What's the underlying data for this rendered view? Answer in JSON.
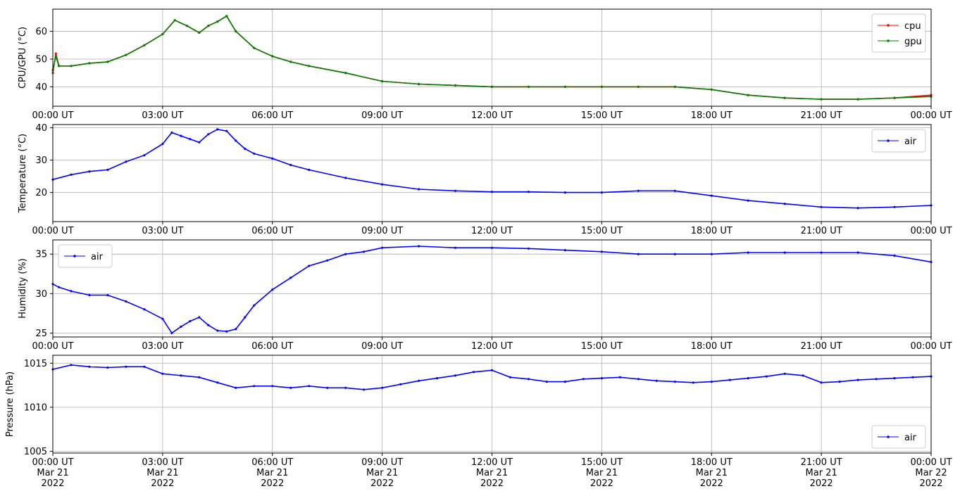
{
  "chart_data": [
    {
      "type": "line",
      "ylabel": "CPU/GPU (°C)",
      "ylim": [
        33,
        68
      ],
      "yticks": [
        40,
        50,
        60
      ],
      "xlim": [
        "2022-03-21 00:00",
        "2022-03-22 00:00"
      ],
      "xtick_labels": [
        "00:00 UT",
        "03:00 UT",
        "06:00 UT",
        "09:00 UT",
        "12:00 UT",
        "15:00 UT",
        "18:00 UT",
        "21:00 UT",
        "00:00 UT"
      ],
      "grid": true,
      "legend_placement": "top-right",
      "series": [
        {
          "name": "cpu",
          "color": "#ff0000",
          "x": [
            "00:00",
            "00:05",
            "00:10",
            "00:30",
            "01:00",
            "01:30",
            "02:00",
            "02:30",
            "03:00",
            "03:20",
            "03:40",
            "04:00",
            "04:15",
            "04:30",
            "04:45",
            "05:00",
            "05:30",
            "06:00",
            "06:30",
            "07:00",
            "08:00",
            "09:00",
            "10:00",
            "11:00",
            "12:00",
            "13:00",
            "14:00",
            "15:00",
            "16:00",
            "17:00",
            "18:00",
            "19:00",
            "20:00",
            "21:00",
            "22:00",
            "23:00",
            "24:00"
          ],
          "values": [
            45,
            52,
            47.5,
            47.5,
            48.5,
            49,
            51.5,
            55,
            59,
            64,
            62,
            59.5,
            62,
            63.5,
            65.5,
            60,
            54,
            51,
            49,
            47.5,
            45,
            42,
            41,
            40.5,
            40,
            40,
            40,
            40,
            40,
            40,
            39,
            37,
            36,
            35.5,
            35.5,
            36,
            37
          ]
        },
        {
          "name": "gpu",
          "color": "#008000",
          "x": [
            "00:00",
            "00:05",
            "00:10",
            "00:30",
            "01:00",
            "01:30",
            "02:00",
            "02:30",
            "03:00",
            "03:20",
            "03:40",
            "04:00",
            "04:15",
            "04:30",
            "04:45",
            "05:00",
            "05:30",
            "06:00",
            "06:30",
            "07:00",
            "08:00",
            "09:00",
            "10:00",
            "11:00",
            "12:00",
            "13:00",
            "14:00",
            "15:00",
            "16:00",
            "17:00",
            "18:00",
            "19:00",
            "20:00",
            "21:00",
            "22:00",
            "23:00",
            "24:00"
          ],
          "values": [
            46,
            51,
            47.5,
            47.5,
            48.5,
            49,
            51.5,
            55,
            59,
            64,
            62,
            59.5,
            62,
            63.5,
            65.5,
            60,
            54,
            51,
            49,
            47.5,
            45,
            42,
            41,
            40.5,
            40,
            40,
            40,
            40,
            40,
            40,
            39,
            37,
            36,
            35.5,
            35.5,
            36,
            36.5
          ]
        }
      ]
    },
    {
      "type": "line",
      "ylabel": "Temperature (°C)",
      "ylim": [
        11,
        41
      ],
      "yticks": [
        20,
        30,
        40
      ],
      "xlim": [
        "2022-03-21 00:00",
        "2022-03-22 00:00"
      ],
      "xtick_labels": [
        "00:00 UT",
        "03:00 UT",
        "06:00 UT",
        "09:00 UT",
        "12:00 UT",
        "15:00 UT",
        "18:00 UT",
        "21:00 UT",
        "00:00 UT"
      ],
      "grid": true,
      "legend_placement": "top-right",
      "series": [
        {
          "name": "air",
          "color": "#0000ff",
          "x": [
            "00:00",
            "00:30",
            "01:00",
            "01:30",
            "02:00",
            "02:30",
            "03:00",
            "03:15",
            "03:30",
            "03:45",
            "04:00",
            "04:15",
            "04:30",
            "04:45",
            "05:00",
            "05:15",
            "05:30",
            "06:00",
            "06:30",
            "07:00",
            "08:00",
            "09:00",
            "10:00",
            "11:00",
            "12:00",
            "13:00",
            "14:00",
            "15:00",
            "16:00",
            "17:00",
            "18:00",
            "19:00",
            "20:00",
            "21:00",
            "22:00",
            "23:00",
            "24:00"
          ],
          "values": [
            24,
            25.5,
            26.5,
            27,
            29.5,
            31.5,
            35,
            38.5,
            37.5,
            36.5,
            35.5,
            38,
            39.5,
            39,
            36,
            33.5,
            32,
            30.5,
            28.5,
            27,
            24.5,
            22.5,
            21,
            20.5,
            20.2,
            20.2,
            20,
            20,
            20.5,
            20.5,
            19,
            17.5,
            16.5,
            15.5,
            15.2,
            15.5,
            16
          ]
        }
      ]
    },
    {
      "type": "line",
      "ylabel": "Humidity (%)",
      "ylim": [
        24.5,
        36.8
      ],
      "yticks": [
        25,
        30,
        35
      ],
      "xlim": [
        "2022-03-21 00:00",
        "2022-03-22 00:00"
      ],
      "xtick_labels": [
        "00:00 UT",
        "03:00 UT",
        "06:00 UT",
        "09:00 UT",
        "12:00 UT",
        "15:00 UT",
        "18:00 UT",
        "21:00 UT",
        "00:00 UT"
      ],
      "grid": true,
      "legend_placement": "top-left",
      "series": [
        {
          "name": "air",
          "color": "#0000ff",
          "x": [
            "00:00",
            "00:10",
            "00:30",
            "01:00",
            "01:30",
            "02:00",
            "02:30",
            "03:00",
            "03:15",
            "03:30",
            "03:45",
            "04:00",
            "04:15",
            "04:30",
            "04:45",
            "05:00",
            "05:15",
            "05:30",
            "06:00",
            "06:30",
            "07:00",
            "07:30",
            "08:00",
            "08:30",
            "09:00",
            "10:00",
            "11:00",
            "12:00",
            "13:00",
            "14:00",
            "15:00",
            "16:00",
            "17:00",
            "18:00",
            "19:00",
            "20:00",
            "21:00",
            "22:00",
            "23:00",
            "24:00"
          ],
          "values": [
            31.2,
            30.8,
            30.3,
            29.8,
            29.8,
            29,
            28,
            26.8,
            25,
            25.8,
            26.5,
            27,
            26,
            25.3,
            25.2,
            25.5,
            27,
            28.5,
            30.5,
            32,
            33.5,
            34.2,
            35,
            35.3,
            35.8,
            36,
            35.8,
            35.8,
            35.7,
            35.5,
            35.3,
            35,
            35,
            35,
            35.2,
            35.2,
            35.2,
            35.2,
            34.8,
            34
          ]
        }
      ]
    },
    {
      "type": "line",
      "ylabel": "Pressure (hPa)",
      "ylim": [
        1004.8,
        1015.9
      ],
      "yticks": [
        1005,
        1010,
        1015
      ],
      "xlim": [
        "2022-03-21 00:00",
        "2022-03-22 00:00"
      ],
      "xtick_labels": [
        "00:00 UT\nMar 21\n2022",
        "03:00 UT\nMar 21\n2022",
        "06:00 UT\nMar 21\n2022",
        "09:00 UT\nMar 21\n2022",
        "12:00 UT\nMar 21\n2022",
        "15:00 UT\nMar 21\n2022",
        "18:00 UT\nMar 21\n2022",
        "21:00 UT\nMar 21\n2022",
        "00:00 UT\nMar 22\n2022"
      ],
      "grid": true,
      "legend_placement": "bottom-right",
      "series": [
        {
          "name": "air",
          "color": "#0000ff",
          "x": [
            "00:00",
            "00:30",
            "01:00",
            "01:30",
            "02:00",
            "02:30",
            "03:00",
            "03:30",
            "04:00",
            "04:30",
            "05:00",
            "05:30",
            "06:00",
            "06:30",
            "07:00",
            "07:30",
            "08:00",
            "08:30",
            "09:00",
            "09:30",
            "10:00",
            "10:30",
            "11:00",
            "11:30",
            "12:00",
            "12:30",
            "13:00",
            "13:30",
            "14:00",
            "14:30",
            "15:00",
            "15:30",
            "16:00",
            "16:30",
            "17:00",
            "17:30",
            "18:00",
            "18:30",
            "19:00",
            "19:30",
            "20:00",
            "20:30",
            "21:00",
            "21:30",
            "22:00",
            "22:30",
            "23:00",
            "23:30",
            "24:00"
          ],
          "values": [
            1014.3,
            1014.8,
            1014.6,
            1014.5,
            1014.6,
            1014.6,
            1013.8,
            1013.6,
            1013.4,
            1012.8,
            1012.2,
            1012.4,
            1012.4,
            1012.2,
            1012.4,
            1012.2,
            1012.2,
            1012.0,
            1012.2,
            1012.6,
            1013.0,
            1013.3,
            1013.6,
            1014.0,
            1014.2,
            1013.4,
            1013.2,
            1012.9,
            1012.9,
            1013.2,
            1013.3,
            1013.4,
            1013.2,
            1013.0,
            1012.9,
            1012.8,
            1012.9,
            1013.1,
            1013.3,
            1013.5,
            1013.8,
            1013.6,
            1012.8,
            1012.9,
            1013.1,
            1013.2,
            1013.3,
            1013.4,
            1013.5
          ]
        }
      ]
    }
  ]
}
